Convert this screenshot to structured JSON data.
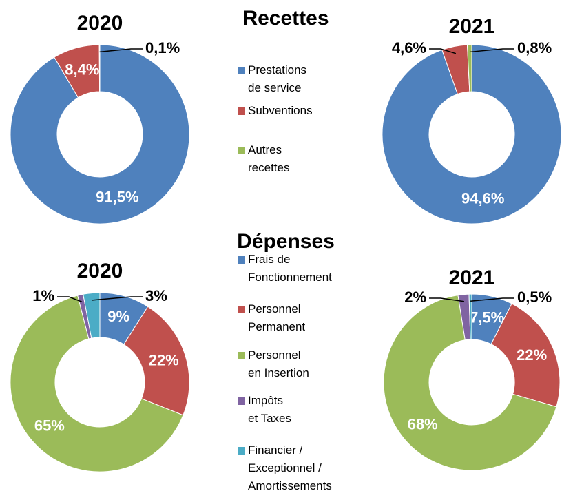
{
  "chart_data": [
    {
      "type": "donut",
      "title": "Recettes",
      "categories": [
        "Prestations\nde service",
        "Subventions",
        "Autres\nrecettes"
      ],
      "colors": [
        "#4f81bd",
        "#c0504d",
        "#9bbb59"
      ],
      "series": [
        {
          "name": "2020",
          "values": [
            91.5,
            8.4,
            0.1
          ],
          "value_labels": [
            "91,5%",
            "8,4%",
            "0,1%"
          ]
        },
        {
          "name": "2021",
          "values": [
            94.6,
            4.6,
            0.8
          ],
          "value_labels": [
            "94,6%",
            "4,6%",
            "0,8%"
          ]
        }
      ]
    },
    {
      "type": "donut",
      "title": "Dépenses",
      "categories": [
        "Frais de\nFonctionnement",
        "Personnel\nPermanent",
        "Personnel\nen Insertion",
        "Impôts\net Taxes",
        "Financier /\nExceptionnel /\nAmortissements"
      ],
      "colors": [
        "#4f81bd",
        "#c0504d",
        "#9bbb59",
        "#8064a2",
        "#4bacc6"
      ],
      "series": [
        {
          "name": "2020",
          "values": [
            9,
            22,
            65,
            1,
            3
          ],
          "value_labels": [
            "9%",
            "22%",
            "65%",
            "1%",
            "3%"
          ]
        },
        {
          "name": "2021",
          "values": [
            7.5,
            22,
            68,
            2,
            0.5
          ],
          "value_labels": [
            "7,5%",
            "22%",
            "68%",
            "2%",
            "0,5%"
          ]
        }
      ]
    }
  ]
}
